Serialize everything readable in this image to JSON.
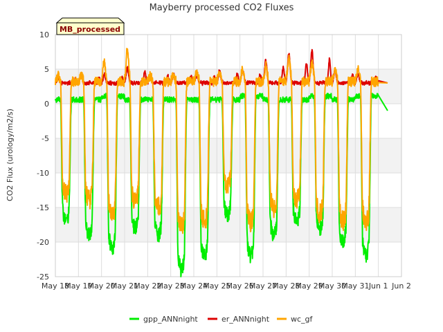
{
  "chart_data": {
    "type": "line",
    "title": "Mayberry processed CO2 Fluxes",
    "xlabel": "",
    "ylabel": "CO2 Flux (urology/m2/s)",
    "tag": "MB_processed",
    "ylim": [
      -25,
      10
    ],
    "xlim": [
      0,
      15
    ],
    "grid": true,
    "legend_position": "bottom",
    "y_ticks": [
      {
        "value": 10,
        "label": "10"
      },
      {
        "value": 5,
        "label": "5"
      },
      {
        "value": 0,
        "label": "0"
      },
      {
        "value": -5,
        "label": "-5"
      },
      {
        "value": -10,
        "label": "-10"
      },
      {
        "value": -15,
        "label": "-15"
      },
      {
        "value": -20,
        "label": "-20"
      },
      {
        "value": -25,
        "label": "-25"
      }
    ],
    "x_ticks": [
      {
        "value": 0,
        "label": "May 18"
      },
      {
        "value": 1,
        "label": "May 19"
      },
      {
        "value": 2,
        "label": "May 20"
      },
      {
        "value": 3,
        "label": "May 21"
      },
      {
        "value": 4,
        "label": "May 22"
      },
      {
        "value": 5,
        "label": "May 23"
      },
      {
        "value": 6,
        "label": "May 24"
      },
      {
        "value": 7,
        "label": "May 25"
      },
      {
        "value": 8,
        "label": "May 26"
      },
      {
        "value": 9,
        "label": "May 27"
      },
      {
        "value": 10,
        "label": "May 28"
      },
      {
        "value": 11,
        "label": "May 29"
      },
      {
        "value": 12,
        "label": "May 30"
      },
      {
        "value": 13,
        "label": "May 31"
      },
      {
        "value": 14,
        "label": "Jun 1"
      },
      {
        "value": 15,
        "label": "Jun 2"
      }
    ],
    "days": [
      {
        "gmin": -17,
        "gmax": 1.0,
        "emax": 4.0,
        "wmin": -13,
        "wmax": 4.0
      },
      {
        "gmin": -19,
        "gmax": 1.0,
        "emax": 4.5,
        "wmin": -14,
        "wmax": 4.0
      },
      {
        "gmin": -21,
        "gmax": 1.5,
        "emax": 4.5,
        "wmin": -16,
        "wmax": 6.0
      },
      {
        "gmin": -18,
        "gmax": 1.0,
        "emax": 5.5,
        "wmin": -14,
        "wmax": 8.0
      },
      {
        "gmin": -19,
        "gmax": 1.0,
        "emax": 4.5,
        "wmin": -15,
        "wmax": 4.0
      },
      {
        "gmin": -24,
        "gmax": 1.0,
        "emax": 4.5,
        "wmin": -18,
        "wmax": 4.0
      },
      {
        "gmin": -22,
        "gmax": 1.0,
        "emax": 4.5,
        "wmin": -17,
        "wmax": 4.5
      },
      {
        "gmin": -16,
        "gmax": 1.0,
        "emax": 5.0,
        "wmin": -12,
        "wmax": 4.5
      },
      {
        "gmin": -22,
        "gmax": 1.5,
        "emax": 5.0,
        "wmin": -17,
        "wmax": 5.0
      },
      {
        "gmin": -19,
        "gmax": 1.0,
        "emax": 6.5,
        "wmin": -15,
        "wmax": 5.5
      },
      {
        "gmin": -17,
        "gmax": 1.0,
        "emax": 7.5,
        "wmin": -14,
        "wmax": 6.5
      },
      {
        "gmin": -18,
        "gmax": 1.5,
        "emax": 8.0,
        "wmin": -16,
        "wmax": 6.0
      },
      {
        "gmin": -20,
        "gmax": 1.0,
        "emax": 5.0,
        "wmin": -17,
        "wmax": 5.0
      },
      {
        "gmin": -22,
        "gmax": 1.5,
        "emax": 4.5,
        "wmin": -17,
        "wmax": 5.0
      }
    ],
    "last_point": {
      "x": 14.4,
      "g": -1.0,
      "e": 3.0,
      "w": 3.0
    },
    "series": [
      {
        "name": "gpp_ANNnight",
        "color": "#00ee00"
      },
      {
        "name": "er_ANNnight",
        "color": "#dd0000"
      },
      {
        "name": "wc_gf",
        "color": "#ffa500"
      }
    ]
  }
}
